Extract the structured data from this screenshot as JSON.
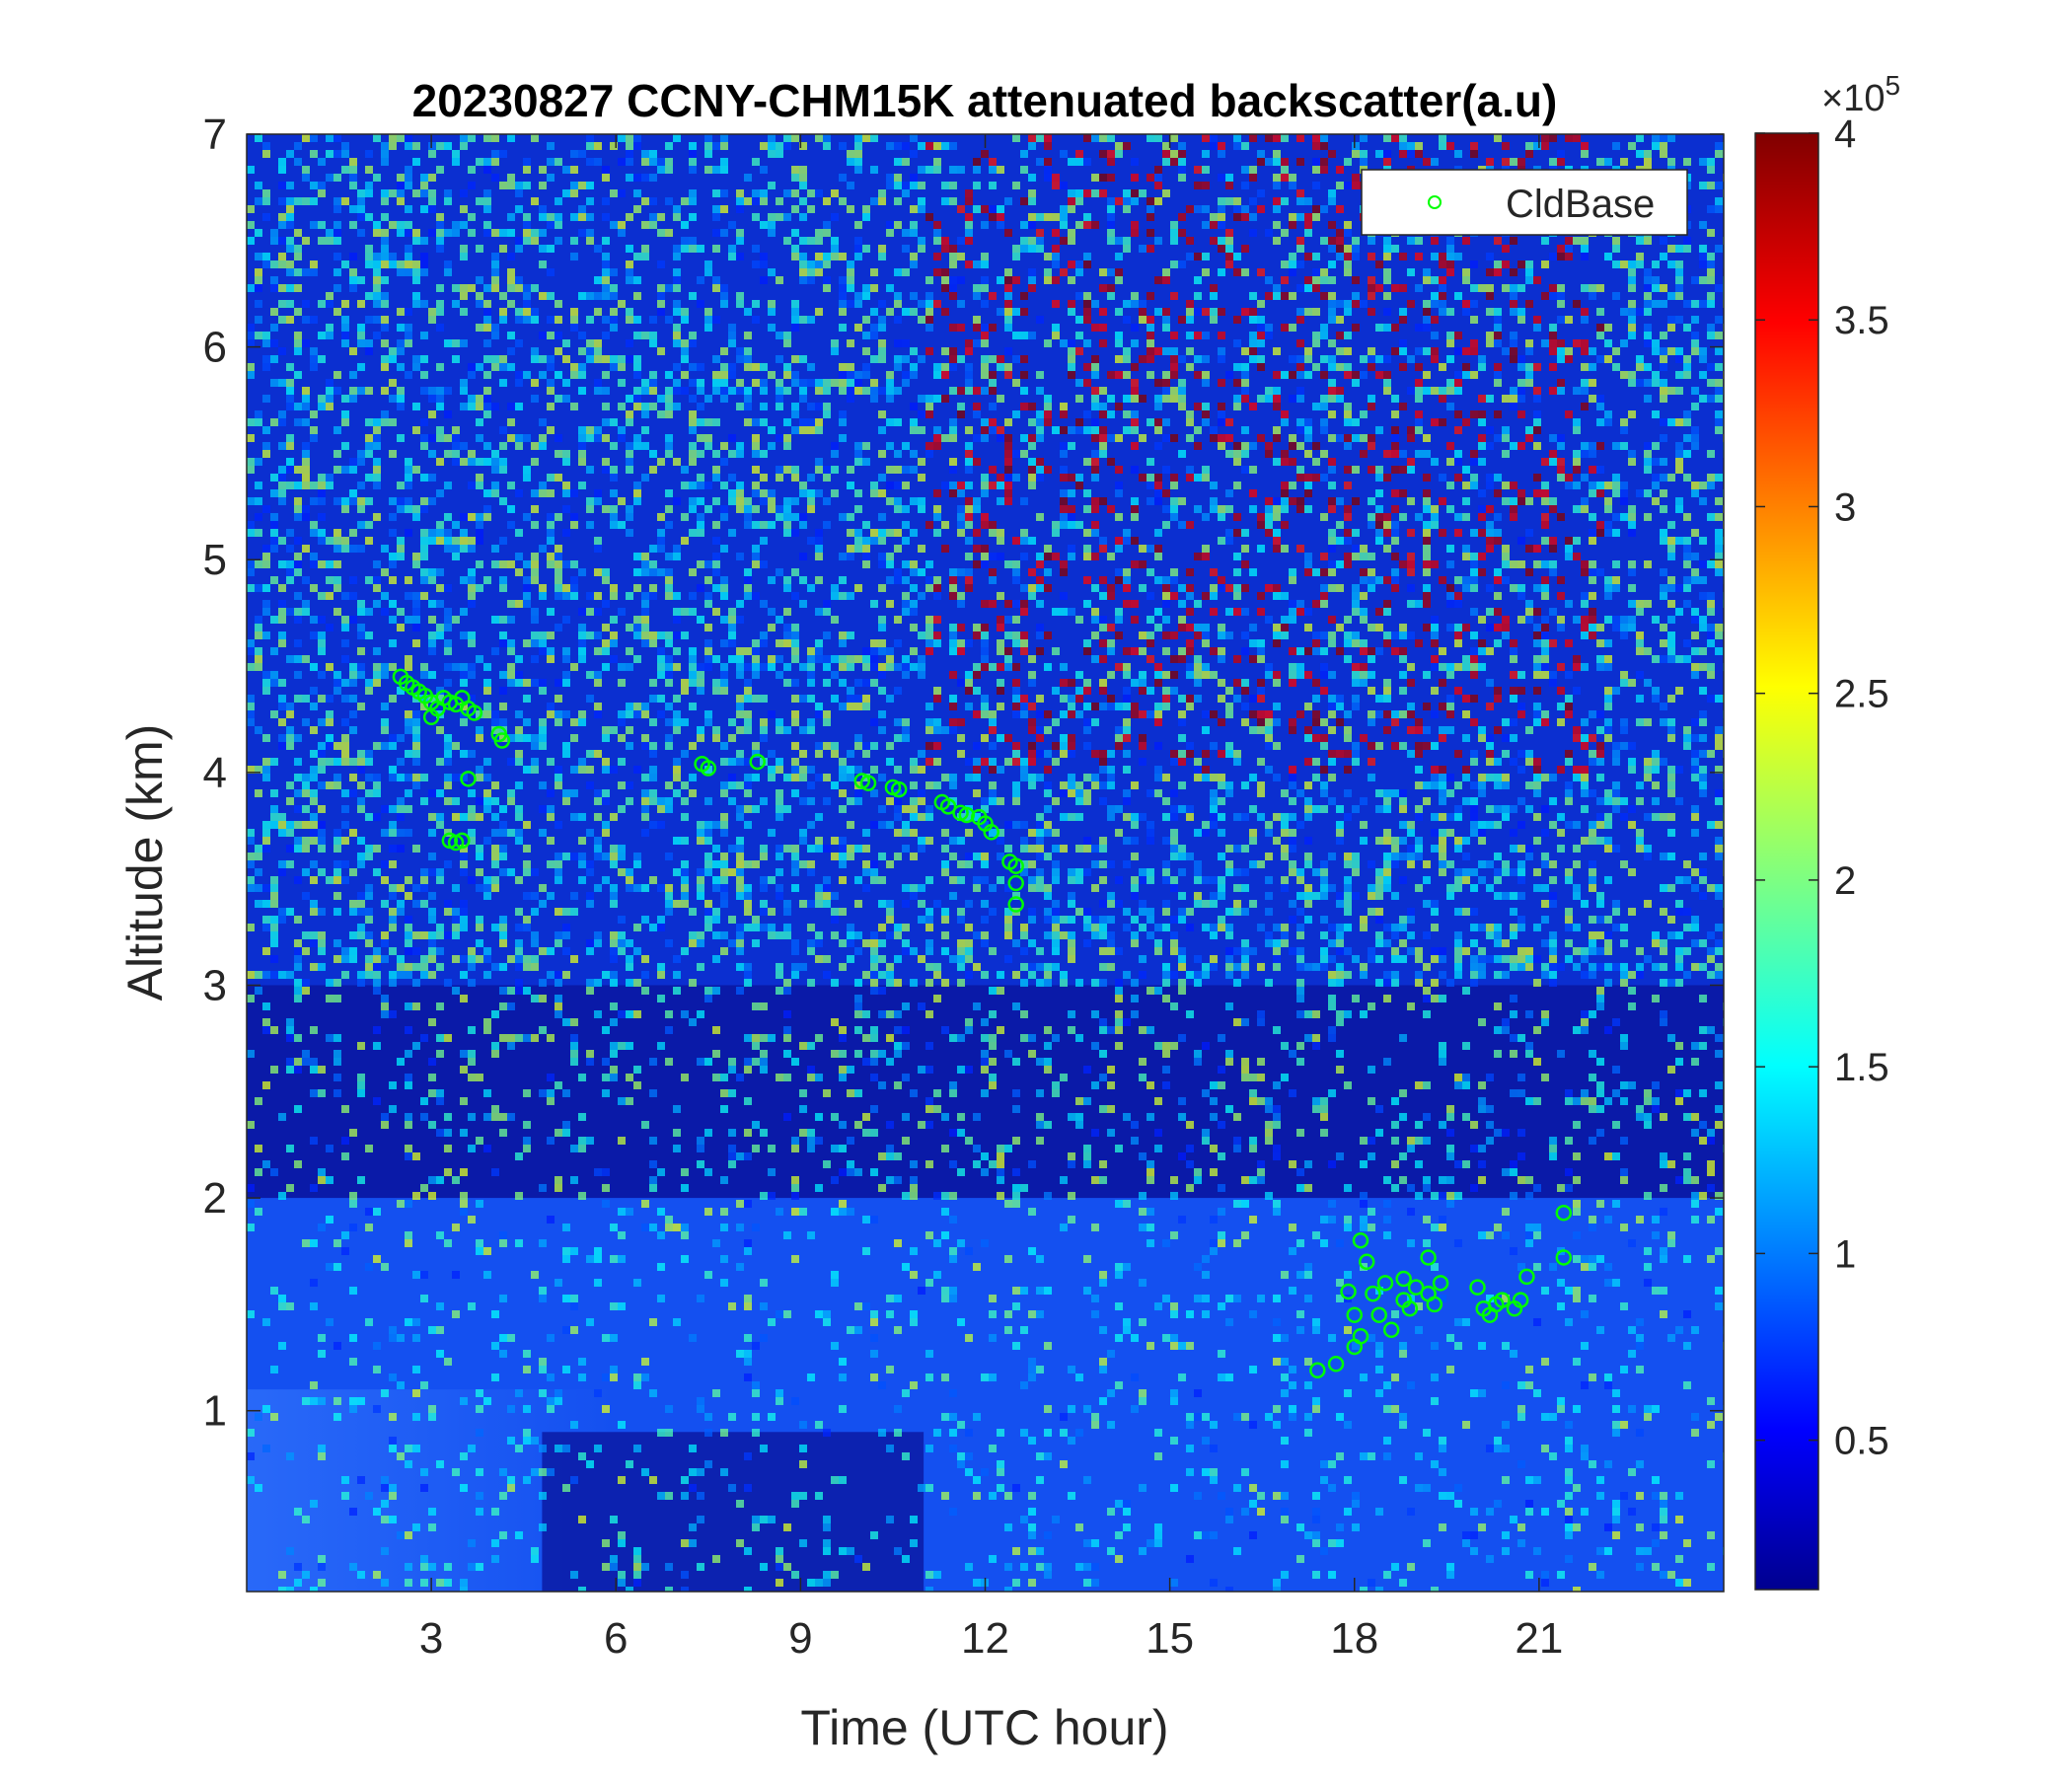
{
  "chart_data": {
    "type": "heatmap",
    "title": "20230827 CCNY-CHM15K attenuated backscatter(a.u)",
    "xlabel": "Time (UTC hour)",
    "ylabel": "Altitude (km)",
    "xlim": [
      0,
      24
    ],
    "ylim": [
      0.15,
      7
    ],
    "xticks": [
      3,
      6,
      9,
      12,
      15,
      18,
      21
    ],
    "yticks": [
      1,
      2,
      3,
      4,
      5,
      6,
      7
    ],
    "colorbar": {
      "range": [
        0.1,
        4
      ],
      "ticks": [
        0.5,
        1,
        1.5,
        2,
        2.5,
        3,
        3.5,
        4
      ],
      "exponent_label": "×10",
      "exponent": "5",
      "colormap": "jet"
    },
    "legend": {
      "entries": [
        {
          "name": "CldBase",
          "marker": "circle",
          "color": "#00ff00"
        }
      ],
      "placement": "top-right"
    },
    "series": [
      {
        "name": "CldBase",
        "marker": "circle",
        "color": "#00ff00",
        "points": [
          [
            2.5,
            4.45
          ],
          [
            2.6,
            4.42
          ],
          [
            2.7,
            4.4
          ],
          [
            2.8,
            4.38
          ],
          [
            2.9,
            4.36
          ],
          [
            3.0,
            4.33
          ],
          [
            3.0,
            4.26
          ],
          [
            3.1,
            4.3
          ],
          [
            3.2,
            4.35
          ],
          [
            3.3,
            4.33
          ],
          [
            3.4,
            4.32
          ],
          [
            3.5,
            4.35
          ],
          [
            3.6,
            4.3
          ],
          [
            3.7,
            4.28
          ],
          [
            3.3,
            3.68
          ],
          [
            3.4,
            3.67
          ],
          [
            3.5,
            3.68
          ],
          [
            3.6,
            3.97
          ],
          [
            4.1,
            4.18
          ],
          [
            4.15,
            4.15
          ],
          [
            7.4,
            4.04
          ],
          [
            7.5,
            4.02
          ],
          [
            8.3,
            4.05
          ],
          [
            10.0,
            3.96
          ],
          [
            10.1,
            3.95
          ],
          [
            10.5,
            3.93
          ],
          [
            10.6,
            3.92
          ],
          [
            11.3,
            3.86
          ],
          [
            11.4,
            3.84
          ],
          [
            11.6,
            3.81
          ],
          [
            11.7,
            3.8
          ],
          [
            11.9,
            3.79
          ],
          [
            12.0,
            3.76
          ],
          [
            12.1,
            3.72
          ],
          [
            12.4,
            3.58
          ],
          [
            12.5,
            3.56
          ],
          [
            12.5,
            3.48
          ],
          [
            12.5,
            3.38
          ],
          [
            17.4,
            1.19
          ],
          [
            17.7,
            1.22
          ],
          [
            17.9,
            1.56
          ],
          [
            18.0,
            1.45
          ],
          [
            18.0,
            1.3
          ],
          [
            18.1,
            1.35
          ],
          [
            18.1,
            1.8
          ],
          [
            18.2,
            1.7
          ],
          [
            18.3,
            1.55
          ],
          [
            18.4,
            1.45
          ],
          [
            18.5,
            1.6
          ],
          [
            18.6,
            1.38
          ],
          [
            18.8,
            1.62
          ],
          [
            18.8,
            1.52
          ],
          [
            18.9,
            1.48
          ],
          [
            19.0,
            1.58
          ],
          [
            19.2,
            1.72
          ],
          [
            19.2,
            1.55
          ],
          [
            19.3,
            1.5
          ],
          [
            19.4,
            1.6
          ],
          [
            20.0,
            1.58
          ],
          [
            20.1,
            1.48
          ],
          [
            20.2,
            1.45
          ],
          [
            20.3,
            1.5
          ],
          [
            20.4,
            1.52
          ],
          [
            20.6,
            1.48
          ],
          [
            20.7,
            1.52
          ],
          [
            20.8,
            1.63
          ],
          [
            21.4,
            1.93
          ],
          [
            21.4,
            1.72
          ]
        ]
      }
    ]
  }
}
